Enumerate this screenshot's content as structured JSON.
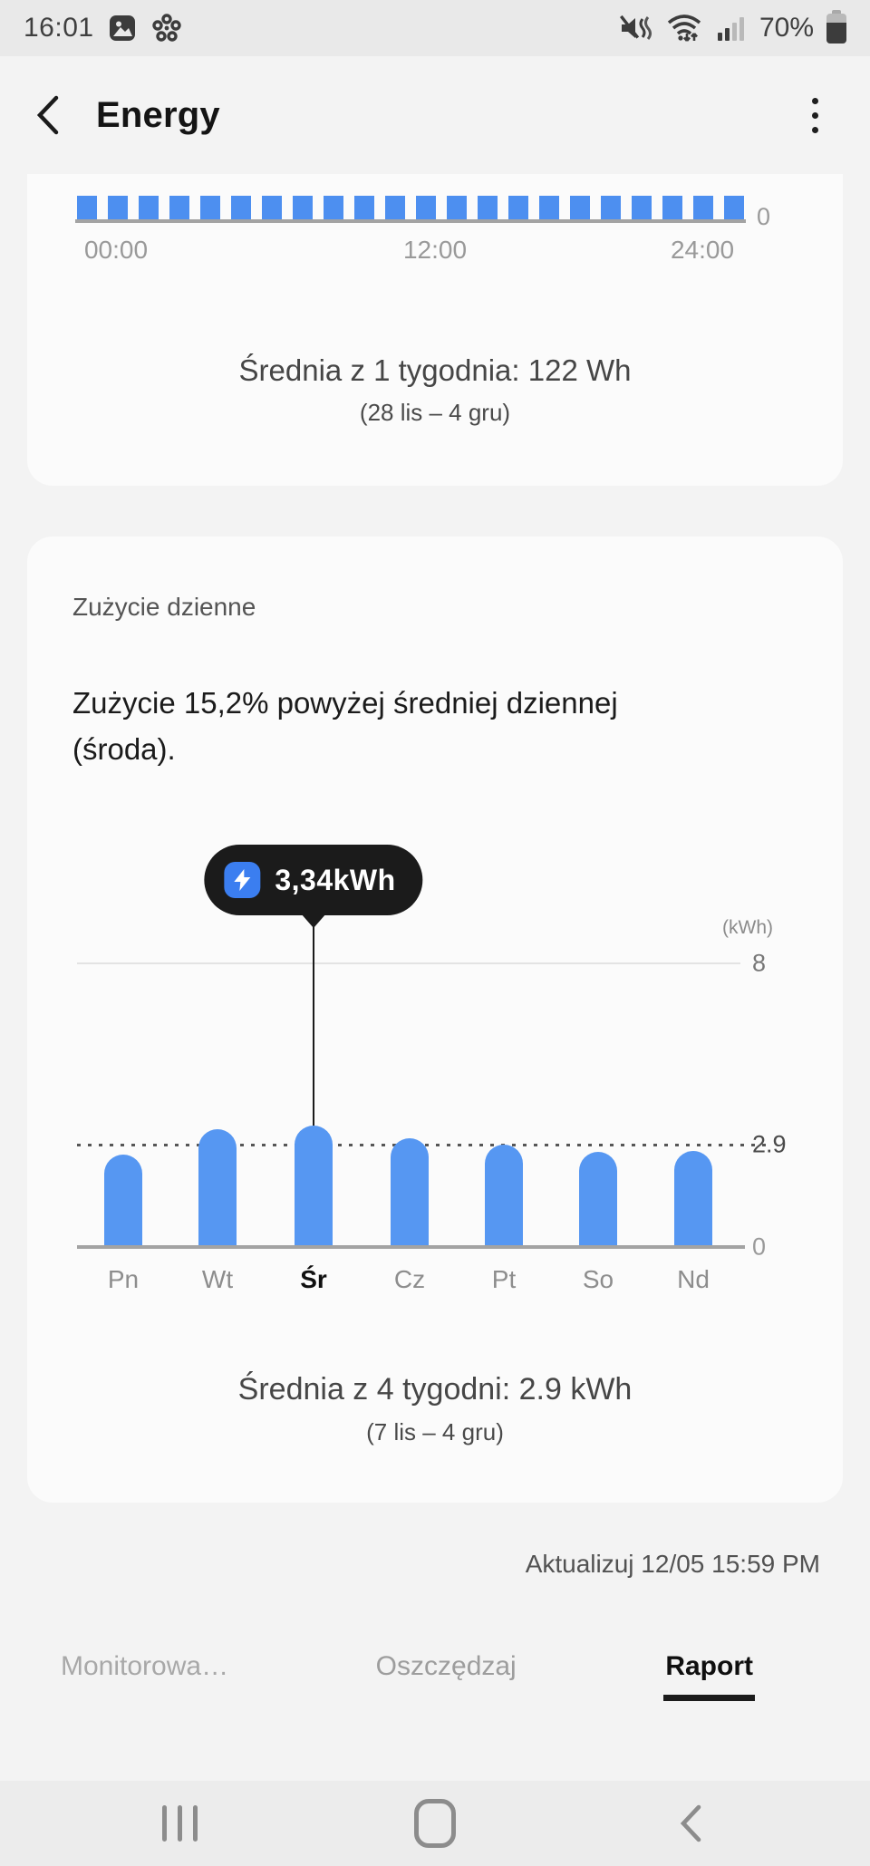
{
  "status_bar": {
    "time": "16:01",
    "left_icons": [
      "screenshot-icon",
      "routines-icon"
    ],
    "right_icons": [
      "mute-vibrate-icon",
      "wifi-icon",
      "signal-icon"
    ],
    "battery_percent": "70%",
    "battery_level": 0.7
  },
  "header": {
    "title": "Energy",
    "back_icon": "chevron-left",
    "menu_icon": "more-vertical"
  },
  "hourly_card": {
    "x_ticks": [
      "00:00",
      "12:00",
      "24:00"
    ],
    "axis_zero_label": "0",
    "average_text": "Średnia z 1 tygodnia: 122 Wh",
    "date_range": "(28 lis – 4 gru)"
  },
  "daily_card": {
    "section_label": "Zużycie dzienne",
    "headline": "Zużycie 15,2% powyżej średniej dziennej (środa).",
    "y_unit_label": "(kWh)",
    "y_tick_top": "8",
    "y_tick_avg": "2.9",
    "y_tick_zero": "0",
    "tooltip_value": "3,34kWh",
    "average_text": "Średnia z 4 tygodni: 2.9 kWh",
    "date_range": "(7 lis – 4 gru)"
  },
  "update_text": "Aktualizuj 12/05 15:59 PM",
  "tabs": [
    {
      "label": "Monitorowa…",
      "active": false
    },
    {
      "label": "Oszczędzaj",
      "active": false
    },
    {
      "label": "Raport",
      "active": true
    }
  ],
  "nav_bar": {
    "icons": [
      "recents-icon",
      "home-icon",
      "back-icon"
    ]
  },
  "colors": {
    "bar_blue": "#5697f2",
    "hourly_bar_blue": "#4d8ff0",
    "tooltip_bg": "#1b1b1b",
    "tooltip_chip_blue": "#3b7ef0",
    "page_bg": "#f3f3f3",
    "card_bg": "#fbfbfb"
  },
  "chart_data": [
    {
      "type": "bar",
      "id": "hourly-usage",
      "x_ticks": [
        "00:00",
        "12:00",
        "24:00"
      ],
      "y_tick_labels": [
        "0"
      ],
      "visible_bar_count": 22,
      "bars_uniform_height": true,
      "note_layout": "chart clipped by scroll; only uniform bar tops visible",
      "bar_color": "#4d8ff0"
    },
    {
      "type": "bar",
      "id": "daily-usage",
      "title": "Zużycie dzienne",
      "categories": [
        "Pn",
        "Wt",
        "Śr",
        "Cz",
        "Pt",
        "So",
        "Nd"
      ],
      "values": [
        2.54,
        3.25,
        3.34,
        3.0,
        2.82,
        2.61,
        2.64
      ],
      "highlight_index": 2,
      "highlight_label": "3,34kWh",
      "ylabel": "(kWh)",
      "yticks": [
        8,
        2.9,
        0
      ],
      "average_line": 2.9,
      "ylim": [
        0,
        8
      ],
      "legend": "none",
      "bar_color": "#5697f2"
    }
  ]
}
